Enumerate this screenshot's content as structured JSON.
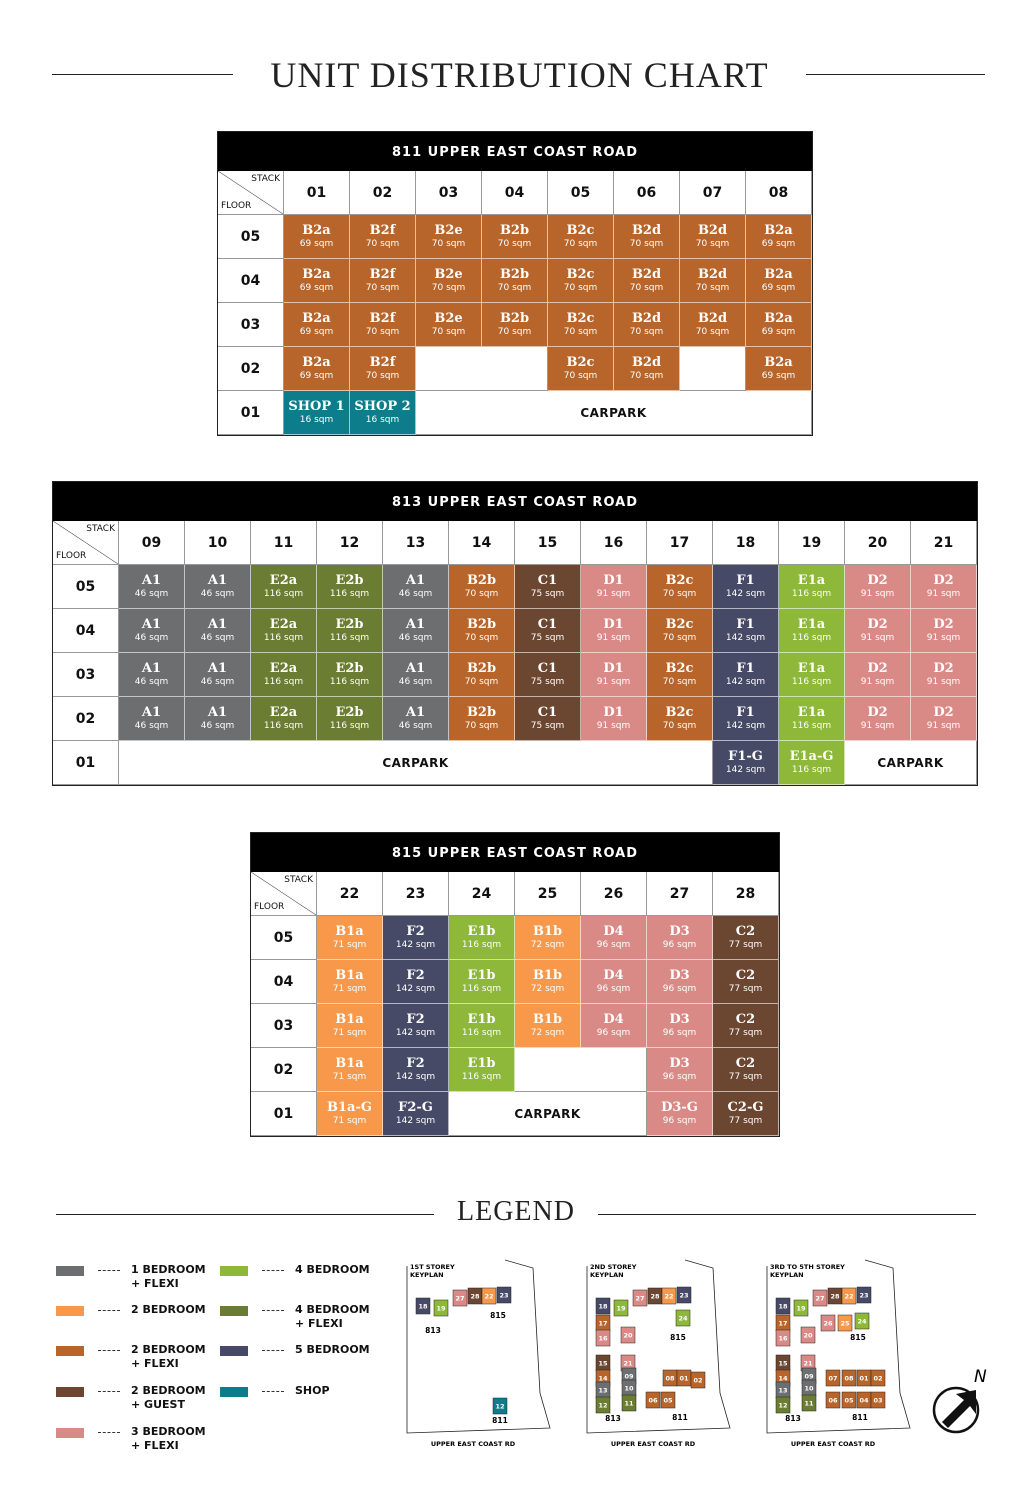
{
  "title": "UNIT DISTRIBUTION CHART",
  "tables": [
    {
      "heading": "811 UPPER EAST COAST ROAD",
      "stack_label": "STACK",
      "floor_label": "FLOOR",
      "stacks": [
        "01",
        "02",
        "03",
        "04",
        "05",
        "06",
        "07",
        "08"
      ],
      "rows": [
        {
          "floor": "05",
          "cells": [
            {
              "type": "B2a",
              "area": "69 sqm"
            },
            {
              "type": "B2f",
              "area": "70 sqm"
            },
            {
              "type": "B2e",
              "area": "70 sqm"
            },
            {
              "type": "B2b",
              "area": "70 sqm"
            },
            {
              "type": "B2c",
              "area": "70 sqm"
            },
            {
              "type": "B2d",
              "area": "70 sqm"
            },
            {
              "type": "B2d",
              "area": "70 sqm"
            },
            {
              "type": "B2a",
              "area": "69 sqm"
            }
          ]
        },
        {
          "floor": "04",
          "cells": [
            {
              "type": "B2a",
              "area": "69 sqm"
            },
            {
              "type": "B2f",
              "area": "70 sqm"
            },
            {
              "type": "B2e",
              "area": "70 sqm"
            },
            {
              "type": "B2b",
              "area": "70 sqm"
            },
            {
              "type": "B2c",
              "area": "70 sqm"
            },
            {
              "type": "B2d",
              "area": "70 sqm"
            },
            {
              "type": "B2d",
              "area": "70 sqm"
            },
            {
              "type": "B2a",
              "area": "69 sqm"
            }
          ]
        },
        {
          "floor": "03",
          "cells": [
            {
              "type": "B2a",
              "area": "69 sqm"
            },
            {
              "type": "B2f",
              "area": "70 sqm"
            },
            {
              "type": "B2e",
              "area": "70 sqm"
            },
            {
              "type": "B2b",
              "area": "70 sqm"
            },
            {
              "type": "B2c",
              "area": "70 sqm"
            },
            {
              "type": "B2d",
              "area": "70 sqm"
            },
            {
              "type": "B2d",
              "area": "70 sqm"
            },
            {
              "type": "B2a",
              "area": "69 sqm"
            }
          ]
        },
        {
          "floor": "02",
          "cells": [
            {
              "type": "B2a",
              "area": "69 sqm"
            },
            {
              "type": "B2f",
              "area": "70 sqm"
            },
            null,
            {
              "type": "B2c",
              "area": "70 sqm"
            },
            {
              "type": "B2d",
              "area": "70 sqm"
            },
            null,
            {
              "type": "B2a",
              "area": "69 sqm"
            }
          ]
        },
        {
          "floor": "01",
          "cells": [
            {
              "type": "SHOP 1",
              "area": "16 sqm"
            },
            {
              "type": "SHOP 2",
              "area": "16 sqm"
            },
            {
              "label": "CARPARK"
            }
          ]
        }
      ]
    },
    {
      "heading": "813 UPPER EAST COAST ROAD",
      "stack_label": "STACK",
      "floor_label": "FLOOR",
      "stacks": [
        "09",
        "10",
        "11",
        "12",
        "13",
        "14",
        "15",
        "16",
        "17",
        "18",
        "19",
        "20",
        "21"
      ],
      "rows": [
        {
          "floor": "05",
          "cells": [
            {
              "type": "A1",
              "area": "46 sqm"
            },
            {
              "type": "A1",
              "area": "46 sqm"
            },
            {
              "type": "E2a",
              "area": "116 sqm"
            },
            {
              "type": "E2b",
              "area": "116 sqm"
            },
            {
              "type": "A1",
              "area": "46 sqm"
            },
            {
              "type": "B2b",
              "area": "70 sqm"
            },
            {
              "type": "C1",
              "area": "75 sqm"
            },
            {
              "type": "D1",
              "area": "91 sqm"
            },
            {
              "type": "B2c",
              "area": "70 sqm"
            },
            {
              "type": "F1",
              "area": "142 sqm"
            },
            {
              "type": "E1a",
              "area": "116 sqm"
            },
            {
              "type": "D2",
              "area": "91 sqm"
            },
            {
              "type": "D2",
              "area": "91 sqm"
            }
          ]
        },
        {
          "floor": "04",
          "cells": [
            {
              "type": "A1",
              "area": "46 sqm"
            },
            {
              "type": "A1",
              "area": "46 sqm"
            },
            {
              "type": "E2a",
              "area": "116 sqm"
            },
            {
              "type": "E2b",
              "area": "116 sqm"
            },
            {
              "type": "A1",
              "area": "46 sqm"
            },
            {
              "type": "B2b",
              "area": "70 sqm"
            },
            {
              "type": "C1",
              "area": "75 sqm"
            },
            {
              "type": "D1",
              "area": "91 sqm"
            },
            {
              "type": "B2c",
              "area": "70 sqm"
            },
            {
              "type": "F1",
              "area": "142 sqm"
            },
            {
              "type": "E1a",
              "area": "116 sqm"
            },
            {
              "type": "D2",
              "area": "91 sqm"
            },
            {
              "type": "D2",
              "area": "91 sqm"
            }
          ]
        },
        {
          "floor": "03",
          "cells": [
            {
              "type": "A1",
              "area": "46 sqm"
            },
            {
              "type": "A1",
              "area": "46 sqm"
            },
            {
              "type": "E2a",
              "area": "116 sqm"
            },
            {
              "type": "E2b",
              "area": "116 sqm"
            },
            {
              "type": "A1",
              "area": "46 sqm"
            },
            {
              "type": "B2b",
              "area": "70 sqm"
            },
            {
              "type": "C1",
              "area": "75 sqm"
            },
            {
              "type": "D1",
              "area": "91 sqm"
            },
            {
              "type": "B2c",
              "area": "70 sqm"
            },
            {
              "type": "F1",
              "area": "142 sqm"
            },
            {
              "type": "E1a",
              "area": "116 sqm"
            },
            {
              "type": "D2",
              "area": "91 sqm"
            },
            {
              "type": "D2",
              "area": "91 sqm"
            }
          ]
        },
        {
          "floor": "02",
          "cells": [
            {
              "type": "A1",
              "area": "46 sqm"
            },
            {
              "type": "A1",
              "area": "46 sqm"
            },
            {
              "type": "E2a",
              "area": "116 sqm"
            },
            {
              "type": "E2b",
              "area": "116 sqm"
            },
            {
              "type": "A1",
              "area": "46 sqm"
            },
            {
              "type": "B2b",
              "area": "70 sqm"
            },
            {
              "type": "C1",
              "area": "75 sqm"
            },
            {
              "type": "D1",
              "area": "91 sqm"
            },
            {
              "type": "B2c",
              "area": "70 sqm"
            },
            {
              "type": "F1",
              "area": "142 sqm"
            },
            {
              "type": "E1a",
              "area": "116 sqm"
            },
            {
              "type": "D2",
              "area": "91 sqm"
            },
            {
              "type": "D2",
              "area": "91 sqm"
            }
          ]
        },
        {
          "floor": "01",
          "cells": [
            {
              "label": "CARPARK"
            },
            {
              "type": "F1-G",
              "area": "142 sqm"
            },
            {
              "type": "E1a-G",
              "area": "116 sqm"
            },
            {
              "label": "CARPARK"
            }
          ]
        }
      ]
    },
    {
      "heading": "815 UPPER EAST COAST ROAD",
      "stack_label": "STACK",
      "floor_label": "FLOOR",
      "stacks": [
        "22",
        "23",
        "24",
        "25",
        "26",
        "27",
        "28"
      ],
      "rows": [
        {
          "floor": "05",
          "cells": [
            {
              "type": "B1a",
              "area": "71 sqm"
            },
            {
              "type": "F2",
              "area": "142 sqm"
            },
            {
              "type": "E1b",
              "area": "116 sqm"
            },
            {
              "type": "B1b",
              "area": "72 sqm"
            },
            {
              "type": "D4",
              "area": "96 sqm"
            },
            {
              "type": "D3",
              "area": "96 sqm"
            },
            {
              "type": "C2",
              "area": "77 sqm"
            }
          ]
        },
        {
          "floor": "04",
          "cells": [
            {
              "type": "B1a",
              "area": "71 sqm"
            },
            {
              "type": "F2",
              "area": "142 sqm"
            },
            {
              "type": "E1b",
              "area": "116 sqm"
            },
            {
              "type": "B1b",
              "area": "72 sqm"
            },
            {
              "type": "D4",
              "area": "96 sqm"
            },
            {
              "type": "D3",
              "area": "96 sqm"
            },
            {
              "type": "C2",
              "area": "77 sqm"
            }
          ]
        },
        {
          "floor": "03",
          "cells": [
            {
              "type": "B1a",
              "area": "71 sqm"
            },
            {
              "type": "F2",
              "area": "142 sqm"
            },
            {
              "type": "E1b",
              "area": "116 sqm"
            },
            {
              "type": "B1b",
              "area": "72 sqm"
            },
            {
              "type": "D4",
              "area": "96 sqm"
            },
            {
              "type": "D3",
              "area": "96 sqm"
            },
            {
              "type": "C2",
              "area": "77 sqm"
            }
          ]
        },
        {
          "floor": "02",
          "cells": [
            {
              "type": "B1a",
              "area": "71 sqm"
            },
            {
              "type": "F2",
              "area": "142 sqm"
            },
            {
              "type": "E1b",
              "area": "116 sqm"
            },
            null,
            {
              "type": "D3",
              "area": "96 sqm"
            },
            {
              "type": "C2",
              "area": "77 sqm"
            }
          ]
        },
        {
          "floor": "01",
          "cells": [
            {
              "type": "B1a-G",
              "area": "71 sqm"
            },
            {
              "type": "F2-G",
              "area": "142 sqm"
            },
            {
              "label": "CARPARK"
            },
            {
              "type": "D3-G",
              "area": "96 sqm"
            },
            {
              "type": "C2-G",
              "area": "77 sqm"
            }
          ]
        }
      ]
    }
  ],
  "legend": {
    "title": "LEGEND",
    "items": [
      {
        "lines": [
          "1 BEDROOM",
          "+ FLEXI"
        ],
        "color": "#6d6e70"
      },
      {
        "lines": [
          "2 BEDROOM"
        ],
        "color": "#f7984a"
      },
      {
        "lines": [
          "2 BEDROOM",
          "+ FLEXI"
        ],
        "color": "#b7652a"
      },
      {
        "lines": [
          "2 BEDROOM",
          "+ GUEST"
        ],
        "color": "#6b4630"
      },
      {
        "lines": [
          "3 BEDROOM",
          "+ FLEXI"
        ],
        "color": "#d98a87"
      },
      {
        "lines": [
          "4 BEDROOM"
        ],
        "color": "#8db83a"
      },
      {
        "lines": [
          "4 BEDROOM",
          "+ FLEXI"
        ],
        "color": "#6b7d32"
      },
      {
        "lines": [
          "5 BEDROOM"
        ],
        "color": "#474a66"
      },
      {
        "lines": [
          "SHOP"
        ],
        "color": "#0d7d8c"
      }
    ]
  },
  "keyplans": [
    {
      "title": [
        "1ST STOREY",
        "KEYPLAN"
      ],
      "units": [
        "18",
        "19",
        "27",
        "28",
        "22",
        "23",
        "12"
      ],
      "buildings": [
        "813",
        "815",
        "811"
      ],
      "road": "UPPER EAST COAST RD"
    },
    {
      "title": [
        "2ND STOREY",
        "KEYPLAN"
      ],
      "units": [
        "18",
        "19",
        "27",
        "28",
        "22",
        "23",
        "24",
        "17",
        "16",
        "20",
        "15",
        "21",
        "14",
        "09",
        "13",
        "10",
        "12",
        "11",
        "08",
        "01",
        "02",
        "06",
        "05"
      ],
      "buildings": [
        "813",
        "815",
        "811"
      ],
      "road": "UPPER EAST COAST RD"
    },
    {
      "title": [
        "3RD TO 5TH STOREY",
        "KEYPLAN"
      ],
      "units": [
        "18",
        "19",
        "27",
        "28",
        "22",
        "23",
        "17",
        "26",
        "25",
        "24",
        "16",
        "20",
        "15",
        "21",
        "14",
        "09",
        "13",
        "10",
        "12",
        "11",
        "07",
        "08",
        "01",
        "02",
        "06",
        "05",
        "04",
        "03"
      ],
      "buildings": [
        "813",
        "815",
        "811"
      ],
      "road": "UPPER EAST COAST RD"
    }
  ],
  "compass": "N"
}
